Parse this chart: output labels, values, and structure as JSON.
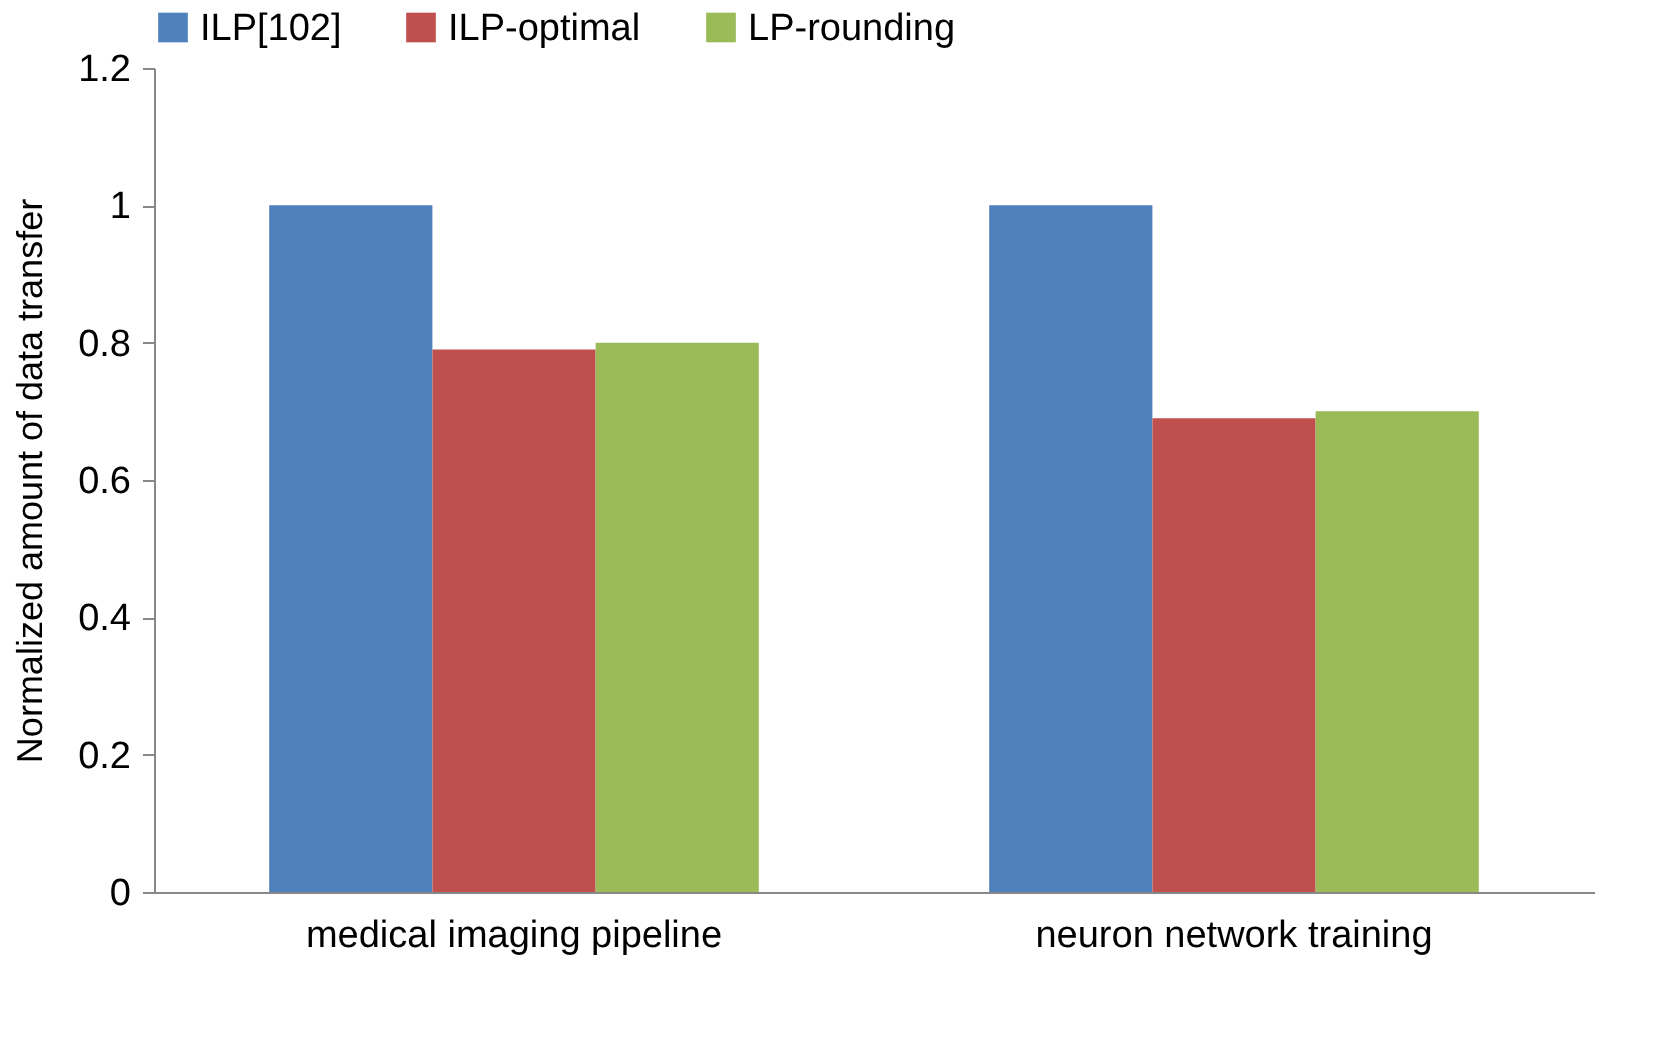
{
  "chart_data": {
    "type": "bar",
    "ylabel": "Normalized amount of data transfer",
    "categories": [
      "medical imaging pipeline",
      "neuron network training"
    ],
    "series": [
      {
        "name": "ILP[102]",
        "color": "#4f81bd",
        "values": [
          1,
          1
        ]
      },
      {
        "name": "ILP-optimal",
        "color": "#c0504d",
        "values": [
          0.79,
          0.69
        ]
      },
      {
        "name": "LP-rounding",
        "color": "#9bbb59",
        "values": [
          0.8,
          0.7
        ]
      }
    ],
    "ylim": [
      0,
      1.2
    ],
    "yticks": [
      0,
      0.2,
      0.4,
      0.6,
      0.8,
      1,
      1.2
    ],
    "grid": false,
    "legend": "top"
  }
}
